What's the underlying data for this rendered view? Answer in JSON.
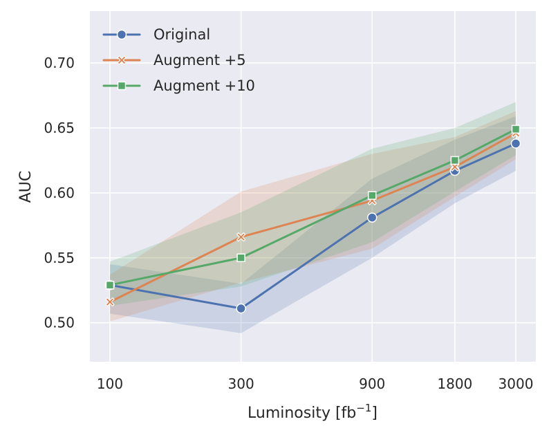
{
  "chart_data": {
    "type": "line",
    "xscale": "log",
    "x": [
      100,
      300,
      900,
      1800,
      3000
    ],
    "x_tick_labels": [
      "100",
      "300",
      "900",
      "1800",
      "3000"
    ],
    "xlabel": "Luminosity [fb",
    "xlabel_sup": "−1",
    "xlabel_end": "]",
    "ylabel": "AUC",
    "ylim": [
      0.47,
      0.74
    ],
    "y_ticks": [
      0.5,
      0.55,
      0.6,
      0.65,
      0.7
    ],
    "y_tick_labels": [
      "0.50",
      "0.55",
      "0.60",
      "0.65",
      "0.70"
    ],
    "grid": true,
    "legend_position": "top-left",
    "series": [
      {
        "name": "Original",
        "color": "#4c72b0",
        "marker": "circle",
        "values": [
          0.529,
          0.511,
          0.581,
          0.617,
          0.638
        ],
        "lower": [
          0.507,
          0.492,
          0.55,
          0.592,
          0.617
        ],
        "upper": [
          0.545,
          0.53,
          0.611,
          0.641,
          0.659
        ]
      },
      {
        "name": "Augment +5",
        "color": "#dd8452",
        "marker": "x",
        "values": [
          0.516,
          0.566,
          0.594,
          0.62,
          0.646
        ],
        "lower": [
          0.501,
          0.531,
          0.557,
          0.597,
          0.626
        ],
        "upper": [
          0.537,
          0.601,
          0.63,
          0.643,
          0.663
        ]
      },
      {
        "name": "Augment +10",
        "color": "#55a868",
        "marker": "square",
        "values": [
          0.529,
          0.55,
          0.598,
          0.625,
          0.649
        ],
        "lower": [
          0.513,
          0.528,
          0.562,
          0.601,
          0.629
        ],
        "upper": [
          0.547,
          0.585,
          0.634,
          0.65,
          0.67
        ]
      }
    ]
  }
}
